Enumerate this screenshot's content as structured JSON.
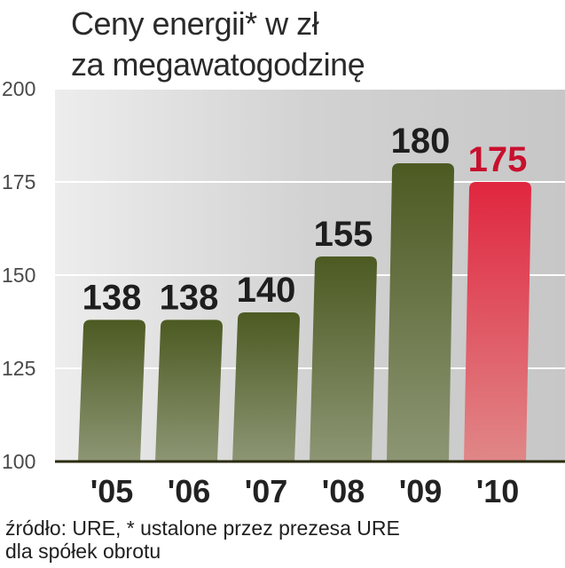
{
  "title_line1": "Ceny energii* w zł",
  "title_line2": "za megawatogodzinę",
  "source_line1": "źródło: URE, * ustalone przez prezesa URE",
  "source_line2": "dla spółek obrotu",
  "colors": {
    "bar": "#5a6a32",
    "highlight": "#d9354a",
    "label": "#1e1e1e",
    "highlight_label": "#c8102e",
    "plot_bg": "#d3d3d3"
  },
  "chart_data": {
    "type": "bar",
    "categories": [
      "'05",
      "'06",
      "'07",
      "'08",
      "'09",
      "'10"
    ],
    "values": [
      138,
      138,
      140,
      155,
      180,
      175
    ],
    "value_labels": [
      "138",
      "138",
      "140",
      "155",
      "180",
      "175"
    ],
    "highlight_index": 5,
    "ylim": [
      100,
      200
    ],
    "yticks": [
      "100",
      "125",
      "150",
      "175",
      "200"
    ],
    "grid": true,
    "title": "Ceny energii* w zł za megawatogodzinę",
    "xlabel": "",
    "ylabel": ""
  }
}
